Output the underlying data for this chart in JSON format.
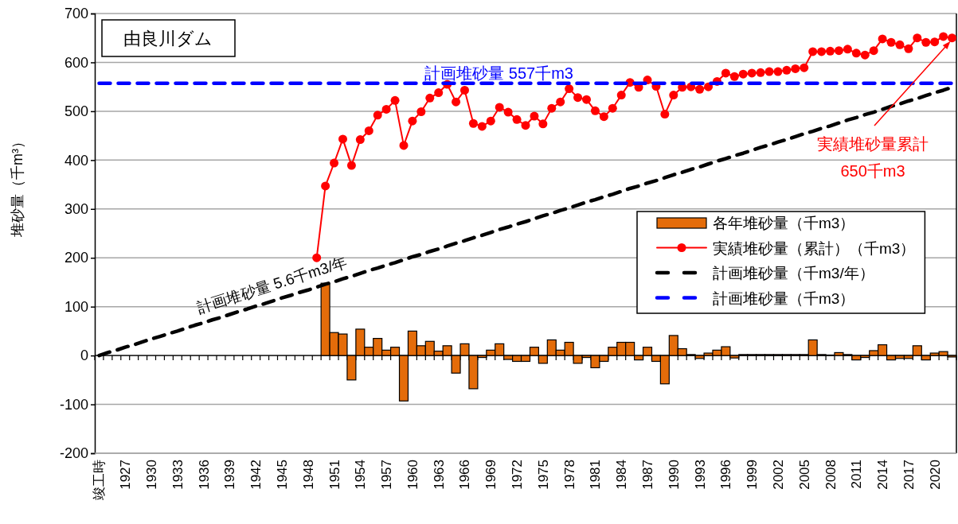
{
  "chart_data": {
    "type": "bar",
    "title": "由良川ダム",
    "ylabel": "堆砂量（千m³）",
    "categories": [
      "竣工時",
      null,
      null,
      "1927",
      null,
      null,
      "1930",
      null,
      null,
      "1933",
      null,
      null,
      "1936",
      null,
      null,
      "1939",
      null,
      null,
      "1942",
      null,
      null,
      "1945",
      null,
      null,
      "1948",
      null,
      null,
      "1951",
      null,
      null,
      "1954",
      null,
      null,
      "1957",
      null,
      null,
      "1960",
      null,
      null,
      "1963",
      null,
      null,
      "1966",
      null,
      null,
      "1969",
      null,
      null,
      "1972",
      null,
      null,
      "1975",
      null,
      null,
      "1978",
      null,
      null,
      "1981",
      null,
      null,
      "1984",
      null,
      null,
      "1987",
      null,
      null,
      "1990",
      null,
      null,
      "1993",
      null,
      null,
      "1996",
      null,
      null,
      "1999",
      null,
      null,
      "2002",
      null,
      null,
      "2005",
      null,
      null,
      "2008",
      null,
      null,
      "2011",
      null,
      null,
      "2014",
      null,
      null,
      "2017",
      null,
      null,
      "2020",
      null,
      null
    ],
    "series": [
      {
        "name": "各年堆砂量（千m3）",
        "color": "#e46c0a",
        "values": [
          null,
          null,
          null,
          null,
          null,
          null,
          null,
          null,
          null,
          null,
          null,
          null,
          null,
          null,
          null,
          null,
          null,
          null,
          null,
          null,
          null,
          null,
          null,
          null,
          null,
          null,
          148,
          47,
          44,
          -50,
          54,
          17,
          35,
          11,
          17,
          -93,
          50,
          20,
          29,
          9,
          20,
          -36,
          24,
          -68,
          -4,
          11,
          24,
          -8,
          -12,
          -12,
          17,
          -16,
          32,
          11,
          27,
          -16,
          -4,
          -25,
          -12,
          17,
          27,
          27,
          -9,
          17,
          -12,
          -58,
          41,
          14,
          2,
          -6,
          5,
          11,
          18,
          -5,
          2,
          2,
          2,
          2,
          2,
          2,
          2,
          2,
          32,
          2,
          1,
          6,
          2,
          -9,
          -4,
          10,
          22,
          -9,
          -6,
          -6,
          20,
          -9,
          5,
          8,
          -3
        ]
      },
      {
        "name": "実績堆砂量（累計）（千m3）",
        "type": "line",
        "color": "#ff0000",
        "marker": "circle",
        "line_style": "solid",
        "values": [
          null,
          null,
          null,
          null,
          null,
          null,
          null,
          null,
          null,
          null,
          null,
          null,
          null,
          null,
          null,
          null,
          null,
          null,
          null,
          null,
          null,
          null,
          null,
          null,
          null,
          200,
          347,
          394,
          443,
          389,
          442,
          460,
          492,
          504,
          522,
          430,
          480,
          499,
          527,
          538,
          555,
          519,
          543,
          475,
          469,
          480,
          508,
          498,
          483,
          471,
          490,
          474,
          506,
          519,
          546,
          528,
          524,
          501,
          489,
          506,
          533,
          559,
          549,
          564,
          551,
          494,
          533,
          549,
          550,
          545,
          550,
          561,
          578,
          571,
          576,
          578,
          579,
          581,
          581,
          584,
          587,
          589,
          622,
          622,
          623,
          624,
          627,
          619,
          615,
          624,
          648,
          641,
          636,
          628,
          650,
          641,
          642,
          653,
          650
        ]
      },
      {
        "name": "計画堆砂量（千m3/年）",
        "type": "line",
        "color": "#000000",
        "marker": "none",
        "line_style": "dashed",
        "values": [
          0,
          6,
          11,
          17,
          22,
          28,
          34,
          39,
          45,
          50,
          56,
          62,
          67,
          73,
          78,
          84,
          90,
          95,
          101,
          106,
          112,
          118,
          123,
          129,
          134,
          140,
          146,
          151,
          157,
          162,
          168,
          174,
          179,
          185,
          190,
          196,
          202,
          207,
          213,
          218,
          224,
          230,
          235,
          241,
          246,
          252,
          258,
          263,
          269,
          274,
          280,
          286,
          291,
          297,
          302,
          308,
          314,
          319,
          325,
          330,
          336,
          342,
          347,
          353,
          358,
          364,
          370,
          375,
          381,
          386,
          392,
          398,
          403,
          409,
          414,
          420,
          426,
          431,
          437,
          442,
          448,
          454,
          459,
          465,
          470,
          476,
          482,
          487,
          493,
          498,
          504,
          510,
          515,
          521,
          526,
          532,
          538,
          543,
          549
        ]
      },
      {
        "name": "計画堆砂量（千m3）",
        "type": "line",
        "color": "#0000ff",
        "marker": "none",
        "line_style": "dashed",
        "values": [
          557,
          557,
          557,
          557,
          557,
          557,
          557,
          557,
          557,
          557,
          557,
          557,
          557,
          557,
          557,
          557,
          557,
          557,
          557,
          557,
          557,
          557,
          557,
          557,
          557,
          557,
          557,
          557,
          557,
          557,
          557,
          557,
          557,
          557,
          557,
          557,
          557,
          557,
          557,
          557,
          557,
          557,
          557,
          557,
          557,
          557,
          557,
          557,
          557,
          557,
          557,
          557,
          557,
          557,
          557,
          557,
          557,
          557,
          557,
          557,
          557,
          557,
          557,
          557,
          557,
          557,
          557,
          557,
          557,
          557,
          557,
          557,
          557,
          557,
          557,
          557,
          557,
          557,
          557,
          557,
          557,
          557,
          557,
          557,
          557,
          557,
          557,
          557,
          557,
          557,
          557,
          557,
          557,
          557,
          557,
          557,
          557,
          557,
          557
        ]
      }
    ],
    "ylim": [
      -200,
      700
    ],
    "yticks": [
      -200,
      -100,
      0,
      100,
      200,
      300,
      400,
      500,
      600,
      700
    ],
    "grid": "y",
    "legend": "right",
    "annotations": [
      {
        "text": "計画堆砂量 557千m3",
        "x": "1963",
        "y": 557
      },
      {
        "text": "計画堆砂量 5.6千m3/年",
        "x": "1936",
        "y": 67
      },
      "実績堆砂量累計\n650千m3"
    ]
  }
}
